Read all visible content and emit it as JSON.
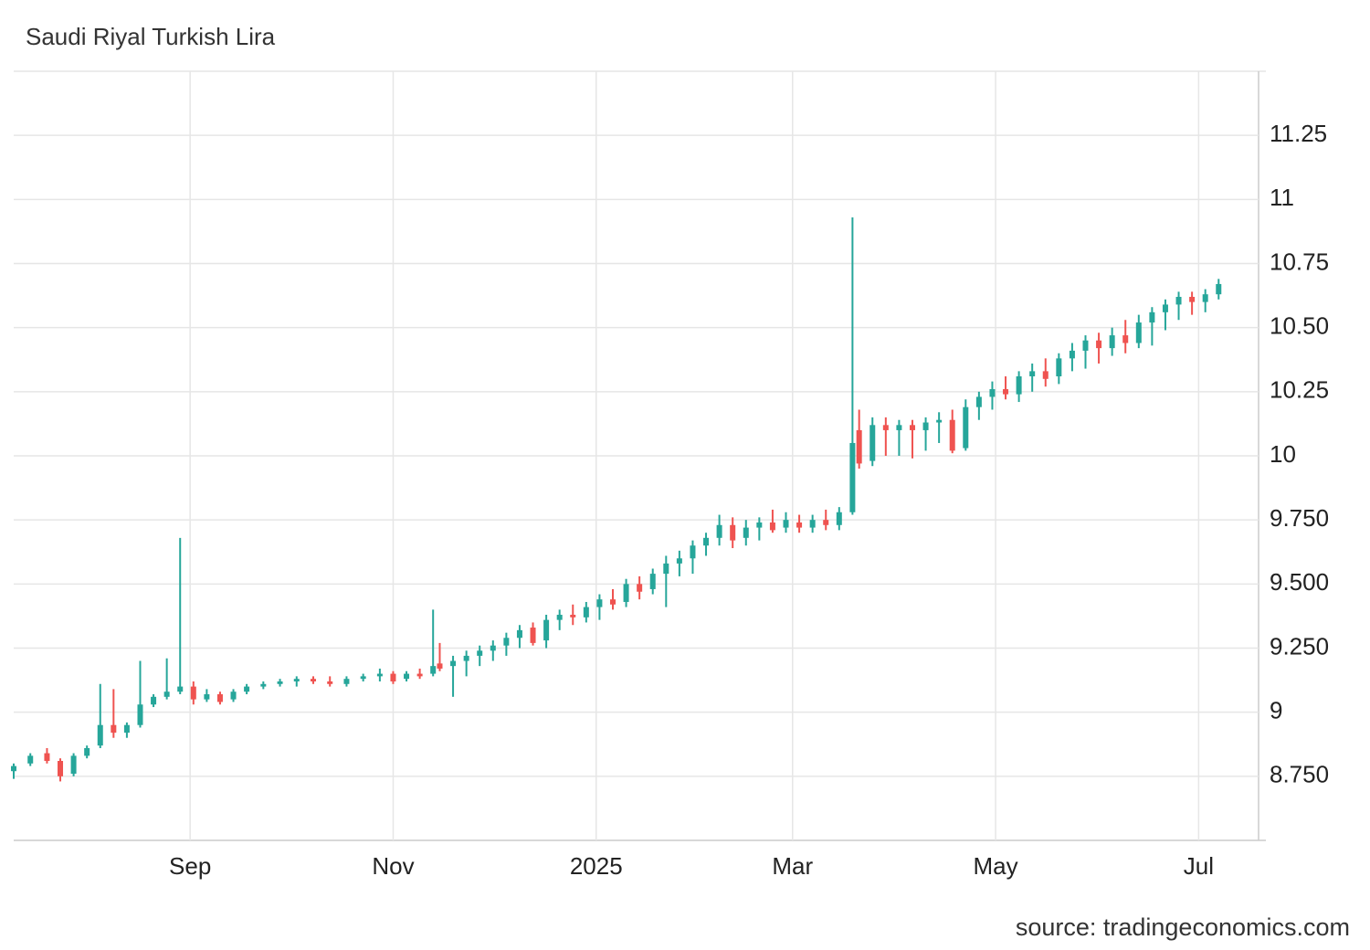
{
  "chart_data": {
    "type": "candlestick",
    "title": "Saudi Riyal Turkish Lira",
    "source": "source: tradingeconomics.com",
    "up_color": "#26a69a",
    "down_color": "#ef5350",
    "grid": true,
    "xlim": [
      0,
      374
    ],
    "xticks": [
      {
        "value": 53,
        "label": "Sep"
      },
      {
        "value": 114,
        "label": "Nov"
      },
      {
        "value": 175,
        "label": "2025"
      },
      {
        "value": 234,
        "label": "Mar"
      },
      {
        "value": 295,
        "label": "May"
      },
      {
        "value": 356,
        "label": "Jul"
      }
    ],
    "ylim": [
      8.5,
      11.5
    ],
    "yticks": [
      {
        "value": 8.75,
        "label": "8.750"
      },
      9,
      {
        "value": 9.25,
        "label": "9.250"
      },
      {
        "value": 9.5,
        "label": "9.500"
      },
      {
        "value": 9.75,
        "label": "9.750"
      },
      10,
      10.25,
      {
        "value": 10.5,
        "label": "10.50"
      },
      10.75,
      11,
      11.25
    ],
    "x": [
      0,
      5,
      10,
      14,
      18,
      22,
      26,
      30,
      34,
      38,
      42,
      46,
      50,
      54,
      58,
      62,
      66,
      70,
      75,
      80,
      85,
      90,
      95,
      100,
      105,
      110,
      114,
      118,
      122,
      126,
      128,
      132,
      136,
      140,
      144,
      148,
      152,
      156,
      160,
      164,
      168,
      172,
      176,
      180,
      184,
      188,
      192,
      196,
      200,
      204,
      208,
      212,
      216,
      220,
      224,
      228,
      232,
      236,
      240,
      244,
      248,
      252,
      254,
      258,
      262,
      266,
      270,
      274,
      278,
      282,
      286,
      290,
      294,
      298,
      302,
      306,
      310,
      314,
      318,
      322,
      326,
      330,
      334,
      338,
      342,
      346,
      350,
      354,
      358,
      362
    ],
    "open": [
      8.77,
      8.8,
      8.84,
      8.81,
      8.76,
      8.83,
      8.87,
      8.95,
      8.92,
      8.95,
      9.03,
      9.06,
      9.08,
      9.1,
      9.05,
      9.07,
      9.05,
      9.08,
      9.1,
      9.11,
      9.12,
      9.13,
      9.12,
      9.11,
      9.13,
      9.14,
      9.15,
      9.13,
      9.15,
      9.15,
      9.19,
      9.18,
      9.2,
      9.22,
      9.24,
      9.26,
      9.29,
      9.33,
      9.28,
      9.36,
      9.38,
      9.37,
      9.41,
      9.44,
      9.43,
      9.5,
      9.48,
      9.54,
      9.58,
      9.6,
      9.65,
      9.68,
      9.73,
      9.68,
      9.72,
      9.74,
      9.72,
      9.74,
      9.72,
      9.75,
      9.73,
      9.78,
      10.1,
      9.98,
      10.12,
      10.1,
      10.12,
      10.1,
      10.13,
      10.14,
      10.03,
      10.19,
      10.23,
      10.26,
      10.24,
      10.31,
      10.33,
      10.31,
      10.38,
      10.41,
      10.45,
      10.42,
      10.47,
      10.44,
      10.52,
      10.56,
      10.59,
      10.62,
      10.6,
      10.63
    ],
    "high": [
      8.8,
      8.84,
      8.86,
      8.82,
      8.84,
      8.87,
      9.11,
      9.09,
      8.96,
      9.2,
      9.07,
      9.21,
      9.68,
      9.12,
      9.09,
      9.08,
      9.09,
      9.11,
      9.12,
      9.13,
      9.14,
      9.14,
      9.14,
      9.14,
      9.15,
      9.17,
      9.16,
      9.16,
      9.17,
      9.4,
      9.27,
      9.22,
      9.24,
      9.26,
      9.28,
      9.31,
      9.34,
      9.35,
      9.38,
      9.4,
      9.42,
      9.43,
      9.46,
      9.48,
      9.52,
      9.53,
      9.56,
      9.61,
      9.63,
      9.67,
      9.7,
      9.77,
      9.76,
      9.75,
      9.76,
      9.79,
      9.78,
      9.77,
      9.77,
      9.79,
      9.8,
      10.93,
      10.18,
      10.15,
      10.15,
      10.14,
      10.14,
      10.15,
      10.17,
      10.18,
      10.22,
      10.25,
      10.29,
      10.31,
      10.33,
      10.36,
      10.38,
      10.4,
      10.44,
      10.47,
      10.48,
      10.5,
      10.53,
      10.55,
      10.58,
      10.61,
      10.64,
      10.64,
      10.65,
      10.69
    ],
    "low": [
      8.74,
      8.79,
      8.8,
      8.73,
      8.75,
      8.82,
      8.86,
      8.9,
      8.9,
      8.94,
      9.02,
      9.05,
      9.07,
      9.03,
      9.04,
      9.03,
      9.04,
      9.07,
      9.09,
      9.1,
      9.1,
      9.11,
      9.1,
      9.1,
      9.12,
      9.12,
      9.11,
      9.12,
      9.13,
      9.14,
      9.16,
      9.06,
      9.14,
      9.18,
      9.2,
      9.22,
      9.25,
      9.26,
      9.25,
      9.32,
      9.34,
      9.35,
      9.36,
      9.4,
      9.41,
      9.44,
      9.46,
      9.41,
      9.53,
      9.54,
      9.61,
      9.65,
      9.64,
      9.65,
      9.67,
      9.7,
      9.7,
      9.7,
      9.7,
      9.71,
      9.71,
      9.77,
      9.95,
      9.96,
      10.0,
      10.0,
      9.99,
      10.02,
      10.05,
      10.01,
      10.02,
      10.14,
      10.18,
      10.22,
      10.21,
      10.25,
      10.27,
      10.28,
      10.33,
      10.34,
      10.36,
      10.39,
      10.4,
      10.42,
      10.43,
      10.49,
      10.53,
      10.55,
      10.56,
      10.61
    ],
    "close": [
      8.79,
      8.83,
      8.81,
      8.75,
      8.83,
      8.86,
      8.95,
      8.92,
      8.95,
      9.03,
      9.06,
      9.08,
      9.1,
      9.05,
      9.07,
      9.04,
      9.08,
      9.1,
      9.11,
      9.12,
      9.13,
      9.12,
      9.11,
      9.13,
      9.14,
      9.15,
      9.12,
      9.15,
      9.14,
      9.18,
      9.17,
      9.2,
      9.22,
      9.24,
      9.26,
      9.29,
      9.32,
      9.27,
      9.36,
      9.38,
      9.37,
      9.41,
      9.44,
      9.42,
      9.5,
      9.47,
      9.54,
      9.58,
      9.6,
      9.65,
      9.68,
      9.73,
      9.67,
      9.72,
      9.74,
      9.71,
      9.75,
      9.72,
      9.75,
      9.73,
      9.78,
      10.05,
      9.97,
      10.12,
      10.1,
      10.12,
      10.1,
      10.13,
      10.14,
      10.02,
      10.19,
      10.23,
      10.26,
      10.24,
      10.31,
      10.33,
      10.3,
      10.38,
      10.41,
      10.45,
      10.42,
      10.47,
      10.44,
      10.52,
      10.56,
      10.59,
      10.62,
      10.6,
      10.63,
      10.67
    ]
  }
}
